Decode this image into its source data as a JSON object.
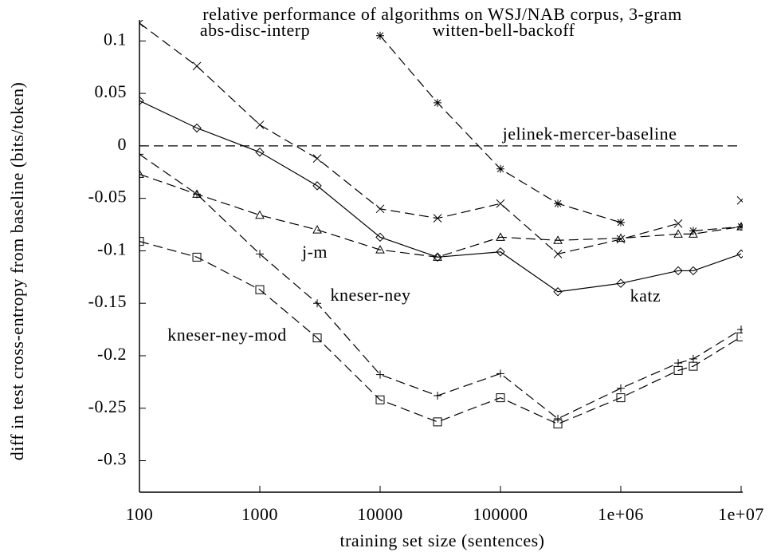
{
  "chart_data": {
    "type": "line",
    "title": "relative performance of algorithms on WSJ/NAB corpus, 3-gram",
    "x_label": "training set size (sentences)",
    "y_label": "diff in test cross-entropy from baseline (bits/token)",
    "x_scale": "log",
    "x": [
      100,
      300,
      1000,
      3000,
      10000,
      30000,
      100000,
      300000,
      1000000,
      3000000,
      4000000,
      10000000
    ],
    "xlim": [
      100,
      10000000
    ],
    "xticks": [
      100,
      1000,
      10000,
      100000,
      {
        "value": 1000000,
        "label": "1e+06"
      },
      {
        "value": 10000000,
        "label": "1e+07"
      }
    ],
    "ylim": [
      -0.33,
      0.12
    ],
    "yticks": [
      0.1,
      0.05,
      0,
      -0.05,
      -0.1,
      -0.15,
      -0.2,
      -0.25,
      -0.3
    ],
    "color": "#000000",
    "series": [
      {
        "name": "abs-disc-interp",
        "marker": "x",
        "dash": true,
        "values": [
          0.117,
          0.076,
          0.02,
          -0.012,
          -0.06,
          -0.069,
          -0.055,
          -0.103,
          -0.089,
          -0.074,
          null,
          -0.052
        ]
      },
      {
        "name": "witten-bell-backoff",
        "marker": "star",
        "dash": true,
        "values": [
          null,
          null,
          null,
          null,
          0.105,
          0.041,
          -0.022,
          -0.055,
          -0.073,
          null,
          -0.081,
          -0.077
        ]
      },
      {
        "name": "jelinek-mercer-baseline",
        "marker": "none",
        "dash": true,
        "values": [
          0,
          0,
          0,
          0,
          0,
          0,
          0,
          0,
          0,
          0,
          0,
          0
        ]
      },
      {
        "name": "katz",
        "marker": "diamond",
        "dash": false,
        "values": [
          0.043,
          0.017,
          -0.006,
          -0.038,
          -0.087,
          -0.106,
          -0.101,
          -0.139,
          -0.131,
          -0.119,
          -0.119,
          -0.103
        ]
      },
      {
        "name": "j-m",
        "marker": "triangle",
        "dash": true,
        "values": [
          -0.027,
          -0.046,
          -0.066,
          -0.08,
          -0.099,
          -0.106,
          -0.087,
          -0.09,
          -0.088,
          -0.084,
          -0.084,
          -0.077
        ]
      },
      {
        "name": "kneser-ney",
        "marker": "plus",
        "dash": true,
        "values": [
          -0.008,
          -0.046,
          -0.103,
          -0.15,
          -0.218,
          -0.238,
          -0.217,
          -0.26,
          -0.231,
          -0.207,
          -0.203,
          -0.175
        ]
      },
      {
        "name": "kneser-ney-mod",
        "marker": "square",
        "dash": true,
        "values": [
          -0.091,
          -0.106,
          -0.137,
          -0.183,
          -0.242,
          -0.263,
          -0.24,
          -0.265,
          -0.24,
          -0.214,
          -0.21,
          -0.182
        ]
      }
    ]
  }
}
